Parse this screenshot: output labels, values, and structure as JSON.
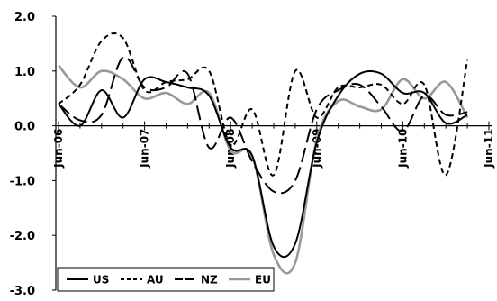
{
  "chart_data": {
    "type": "line",
    "title": "",
    "xlabel": "",
    "ylabel": "",
    "ylim": [
      -3.0,
      2.0
    ],
    "y_ticks": [
      "2.0",
      "1.0",
      "0.0",
      "-1.0",
      "-2.0",
      "-3.0"
    ],
    "x_ticks": [
      "Jun-06",
      "Jun-07",
      "Jun-08",
      "Jun-09",
      "Jun-10",
      "Jun-11"
    ],
    "x_period": "quarterly",
    "x_start": "Jun-06",
    "grid": false,
    "legend_position": "bottom-left",
    "colors": {
      "US": "#000000",
      "AU": "#000000",
      "NZ": "#000000",
      "EU": "#999999"
    },
    "series": [
      {
        "name": "US",
        "style": "solid",
        "values": [
          0.4,
          0.0,
          0.65,
          0.15,
          0.85,
          0.8,
          0.7,
          0.55,
          -0.4,
          -0.55,
          -2.2,
          -2.15,
          -0.3,
          0.55,
          0.95,
          0.95,
          0.6,
          0.6,
          0.05,
          0.2
        ]
      },
      {
        "name": "AU",
        "style": "dashed",
        "values": [
          0.4,
          0.75,
          1.55,
          1.6,
          0.65,
          0.8,
          0.85,
          1.0,
          -0.35,
          0.3,
          -0.9,
          1.0,
          0.15,
          0.7,
          0.7,
          0.75,
          0.4,
          0.75,
          -0.9,
          1.2
        ]
      },
      {
        "name": "NZ",
        "style": "long-dash",
        "values": [
          0.4,
          0.1,
          0.2,
          1.25,
          0.7,
          0.7,
          0.95,
          -0.4,
          0.15,
          -0.65,
          -1.2,
          -1.0,
          0.3,
          0.65,
          0.75,
          0.35,
          -0.1,
          0.55,
          0.2,
          0.25
        ]
      },
      {
        "name": "EU",
        "style": "solid",
        "values": [
          1.1,
          0.7,
          1.0,
          0.85,
          0.5,
          0.6,
          0.4,
          0.6,
          -0.45,
          -0.55,
          -2.35,
          -2.5,
          -0.25,
          0.45,
          0.35,
          0.3,
          0.85,
          0.5,
          0.8,
          0.15
        ]
      }
    ]
  }
}
